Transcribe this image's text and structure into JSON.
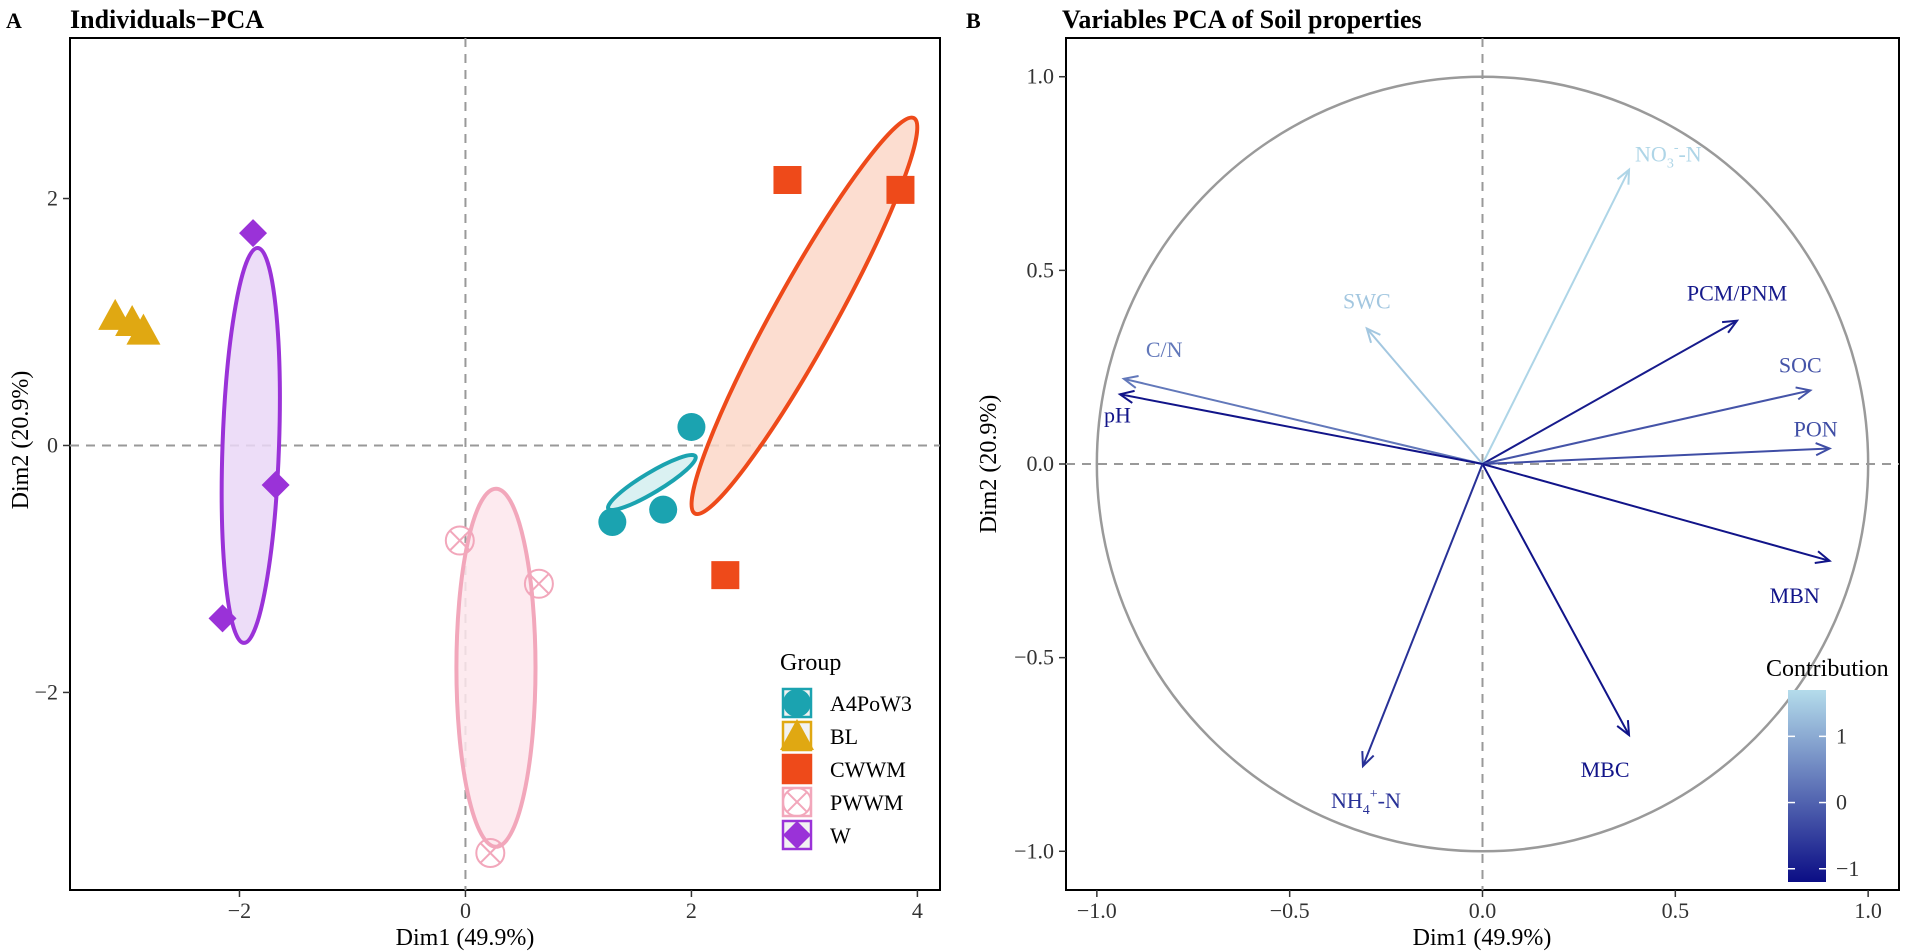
{
  "chart_data": [
    {
      "type": "scatter",
      "panel_label": "A",
      "title": "Individuals−PCA",
      "xlabel": "Dim1 (49.9%)",
      "ylabel": "Dim2 (20.9%)",
      "xlim": [
        -3.5,
        4.2
      ],
      "ylim": [
        -3.6,
        3.3
      ],
      "xticks": [
        -2,
        0,
        2,
        4
      ],
      "yticks": [
        -2,
        0,
        2
      ],
      "xtick_labels": [
        "−2",
        "0",
        "2",
        "4"
      ],
      "ytick_labels": [
        "−2",
        "0",
        "2"
      ],
      "grid": false,
      "reference_lines": [
        0,
        0
      ],
      "legend": {
        "title": "Group",
        "placement": "bottom-right",
        "entries": [
          "A4PoW3",
          "BL",
          "CWWM",
          "PWWM",
          "W"
        ]
      },
      "series": [
        {
          "name": "A4PoW3",
          "marker": "circle",
          "color": "#1ba3b0",
          "fill": "#d3eef0",
          "points": [
            [
              2.0,
              0.15
            ],
            [
              1.75,
              -0.52
            ],
            [
              1.3,
              -0.62
            ]
          ],
          "ellipse": {
            "center": [
              1.65,
              -0.3
            ],
            "rx": 0.45,
            "ry": 0.08,
            "angle_deg": 31
          }
        },
        {
          "name": "BL",
          "marker": "triangle",
          "color": "#e0a812",
          "fill": "#e0a812",
          "points": [
            [
              -3.1,
              1.05
            ],
            [
              -2.85,
              0.93
            ],
            [
              -2.95,
              1.0
            ]
          ],
          "ellipse": null
        },
        {
          "name": "CWWM",
          "marker": "square",
          "color": "#ee4a1a",
          "fill": "#fbd7c8",
          "points": [
            [
              2.85,
              2.15
            ],
            [
              3.85,
              2.07
            ],
            [
              2.3,
              -1.05
            ]
          ],
          "ellipse": {
            "center": [
              3.0,
              1.05
            ],
            "rx": 2.0,
            "ry": 0.25,
            "angle_deg": 61
          }
        },
        {
          "name": "PWWM",
          "marker": "circle-cross",
          "color": "#f2a7bb",
          "fill": "#fde6ec",
          "points": [
            [
              -0.05,
              -0.77
            ],
            [
              0.65,
              -1.12
            ],
            [
              0.22,
              -3.3
            ]
          ],
          "ellipse": {
            "center": [
              0.27,
              -1.8
            ],
            "rx": 0.35,
            "ry": 1.45,
            "angle_deg": 0
          }
        },
        {
          "name": "W",
          "marker": "diamond",
          "color": "#9a32d8",
          "fill": "#ead7f7",
          "points": [
            [
              -1.88,
              1.72
            ],
            [
              -1.68,
              -0.32
            ],
            [
              -2.15,
              -1.4
            ]
          ],
          "ellipse": {
            "center": [
              -1.9,
              0.0
            ],
            "rx": 0.25,
            "ry": 1.6,
            "angle_deg": -2
          }
        }
      ]
    },
    {
      "type": "line",
      "subtype": "pca-variable-correlation-circle",
      "panel_label": "B",
      "title": "Variables PCA of Soil properties",
      "xlabel": "Dim1 (49.9%)",
      "ylabel": "Dim2 (20.9%)",
      "xlim": [
        -1.08,
        1.08
      ],
      "ylim": [
        -1.1,
        1.1
      ],
      "xticks": [
        -1.0,
        -0.5,
        0.0,
        0.5,
        1.0
      ],
      "yticks": [
        -1.0,
        -0.5,
        0.0,
        0.5,
        1.0
      ],
      "xtick_labels": [
        "−1.0",
        "−0.5",
        "0.0",
        "0.5",
        "1.0"
      ],
      "ytick_labels": [
        "−1.0",
        "−0.5",
        "0.0",
        "0.5",
        "1.0"
      ],
      "grid": false,
      "unit_circle": true,
      "colorbar": {
        "title": "Contribution",
        "placement": "bottom-right",
        "range": [
          -1.2,
          1.7
        ],
        "ticks": [
          1,
          0,
          -1
        ],
        "color_low": "#0b0d85",
        "color_high": "#b4dceb"
      },
      "vectors": [
        {
          "name": "NO3-N",
          "label_main": "NO",
          "label_sub": "3",
          "label_sup": "-",
          "label_tail": "-N",
          "x": 0.38,
          "y": 0.76,
          "contribution": 1.6
        },
        {
          "name": "SWC",
          "label_main": "SWC",
          "x": -0.3,
          "y": 0.35,
          "contribution": 1.4
        },
        {
          "name": "PCM/PNM",
          "label_main": "PCM/PNM",
          "x": 0.66,
          "y": 0.37,
          "contribution": -1.0
        },
        {
          "name": "C/N",
          "label_main": "C/N",
          "x": -0.93,
          "y": 0.22,
          "contribution": 0.3
        },
        {
          "name": "SOC",
          "label_main": "SOC",
          "x": 0.85,
          "y": 0.19,
          "contribution": -0.2
        },
        {
          "name": "pH",
          "label_main": "pH",
          "x": -0.94,
          "y": 0.18,
          "contribution": -1.1
        },
        {
          "name": "PON",
          "label_main": "PON",
          "x": 0.9,
          "y": 0.04,
          "contribution": -0.3
        },
        {
          "name": "MBN",
          "label_main": "MBN",
          "x": 0.9,
          "y": -0.25,
          "contribution": -1.1
        },
        {
          "name": "MBC",
          "label_main": "MBC",
          "x": 0.38,
          "y": -0.7,
          "contribution": -1.1
        },
        {
          "name": "NH4+-N",
          "label_main": "NH",
          "label_sub": "4",
          "label_sup": "+",
          "label_tail": "-N",
          "x": -0.31,
          "y": -0.78,
          "contribution": -0.7
        }
      ]
    }
  ]
}
